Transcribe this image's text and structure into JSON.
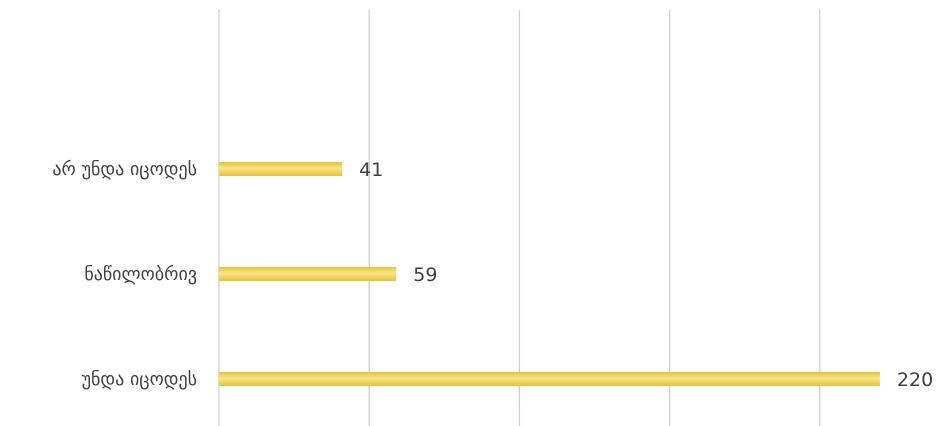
{
  "chart_data": {
    "type": "bar",
    "orientation": "horizontal",
    "categories": [
      "არ უნდა იცოდეს",
      "ნაწილობრივ",
      "უნდა იცოდეს"
    ],
    "values": [
      41,
      59,
      220
    ],
    "xlim": [
      0,
      240
    ],
    "x_tick_step": 50,
    "grid": true,
    "tick_labels_shown": false,
    "bar_color": "#E8C132",
    "bar_highlight_color": "#F6E58A",
    "grid_color": "#D0D0D0",
    "text_color": "#404040"
  }
}
